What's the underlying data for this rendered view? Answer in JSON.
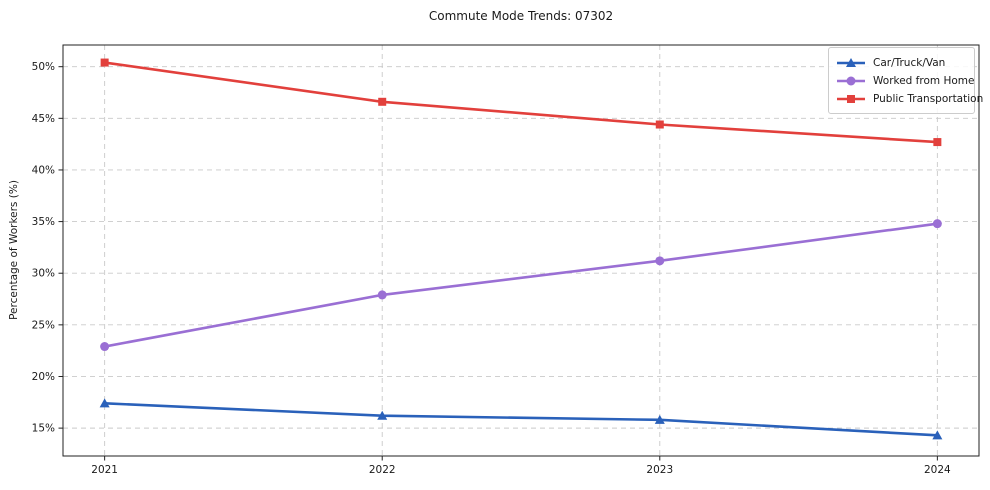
{
  "chart_data": {
    "type": "line",
    "title": "Commute Mode Trends: 07302",
    "xlabel": "",
    "ylabel": "Percentage of Workers (%)",
    "categories": [
      "2021",
      "2022",
      "2023",
      "2024"
    ],
    "series": [
      {
        "name": "Car/Truck/Van",
        "color": "#2a61ba",
        "marker": "triangle",
        "values": [
          17.4,
          16.2,
          15.8,
          14.3
        ]
      },
      {
        "name": "Worked from Home",
        "color": "#9a6fd4",
        "marker": "circle",
        "values": [
          22.9,
          27.9,
          31.2,
          34.8
        ]
      },
      {
        "name": "Public Transportation",
        "color": "#e2403c",
        "marker": "square",
        "values": [
          50.4,
          46.6,
          44.4,
          42.7
        ]
      }
    ],
    "ytick_labels": [
      "15%",
      "20%",
      "25%",
      "30%",
      "35%",
      "40%",
      "45%",
      "50%"
    ],
    "ytick_values": [
      15,
      20,
      25,
      30,
      35,
      40,
      45,
      50
    ],
    "ylim": [
      12.3,
      52.1
    ],
    "grid": true,
    "grid_style": "dashed",
    "legend_position": "upper right",
    "axis_color": "#222222",
    "grid_color": "#c9c9c9",
    "tick_label_color": "#1a1a1a"
  }
}
